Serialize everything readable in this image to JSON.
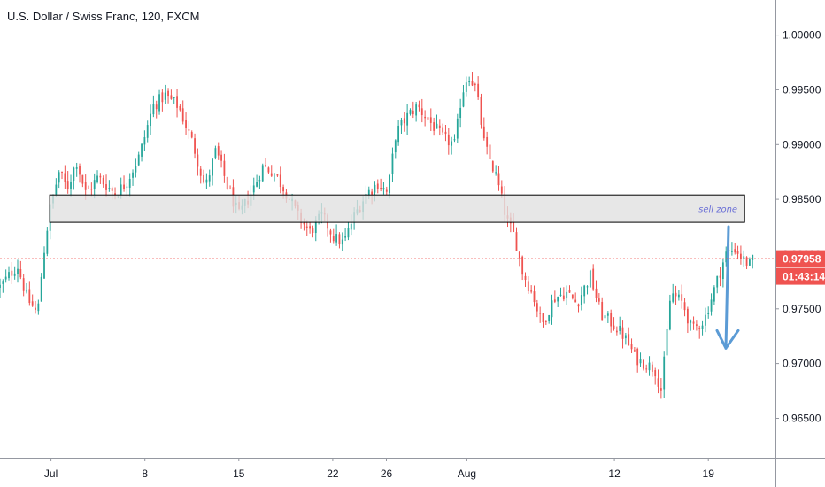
{
  "chart_data": {
    "type": "candlestick",
    "title": "U.S. Dollar / Swiss Franc, 120, FXCM",
    "y_ticks": [
      "1.00000",
      "0.99500",
      "0.99000",
      "0.98500",
      "0.98000",
      "0.97500",
      "0.97000",
      "0.96500"
    ],
    "y_tick_values": [
      1.0,
      0.995,
      0.99,
      0.985,
      0.98,
      0.975,
      0.97,
      0.965
    ],
    "ylim": [
      0.9614,
      1.0032
    ],
    "x_ticks": [
      "Jul",
      "8",
      "15",
      "22",
      "26",
      "Aug",
      "12",
      "19"
    ],
    "x_tick_days": [
      1,
      8,
      15,
      22,
      26,
      32,
      43,
      50
    ],
    "x_range_days": [
      -2.8,
      55
    ],
    "current_price": "0.97958",
    "current_price_value": 0.97958,
    "countdown": "01:43:14",
    "zone": {
      "label": "sell zone",
      "y_top": 0.9854,
      "y_bottom": 0.9829,
      "x_start_day": 0.9,
      "x_end_day": 52.7
    },
    "arrow": {
      "x_day": 51.5,
      "y_start": 0.9825,
      "y_end": 0.9714
    },
    "anchors": [
      [
        -2.8,
        0.977
      ],
      [
        -1.5,
        0.979
      ],
      [
        -0.8,
        0.976
      ],
      [
        0.0,
        0.9745
      ],
      [
        0.4,
        0.9795
      ],
      [
        0.9,
        0.984
      ],
      [
        1.6,
        0.9875
      ],
      [
        2.2,
        0.986
      ],
      [
        2.9,
        0.9885
      ],
      [
        3.6,
        0.9855
      ],
      [
        4.5,
        0.987
      ],
      [
        5.8,
        0.9855
      ],
      [
        6.6,
        0.9865
      ],
      [
        7.6,
        0.989
      ],
      [
        8.6,
        0.9935
      ],
      [
        9.5,
        0.9945
      ],
      [
        10.5,
        0.9935
      ],
      [
        11.6,
        0.99
      ],
      [
        12.5,
        0.986
      ],
      [
        13.3,
        0.9895
      ],
      [
        14.2,
        0.986
      ],
      [
        15.0,
        0.9835
      ],
      [
        15.9,
        0.9855
      ],
      [
        16.8,
        0.988
      ],
      [
        17.6,
        0.9875
      ],
      [
        18.6,
        0.9855
      ],
      [
        19.4,
        0.9835
      ],
      [
        20.3,
        0.982
      ],
      [
        21.2,
        0.9835
      ],
      [
        22.1,
        0.9815
      ],
      [
        22.8,
        0.981
      ],
      [
        23.6,
        0.9835
      ],
      [
        24.5,
        0.9855
      ],
      [
        25.4,
        0.9865
      ],
      [
        26.1,
        0.9855
      ],
      [
        26.7,
        0.991
      ],
      [
        27.5,
        0.9925
      ],
      [
        28.3,
        0.9935
      ],
      [
        29.3,
        0.992
      ],
      [
        30.3,
        0.9905
      ],
      [
        31.1,
        0.99
      ],
      [
        31.6,
        0.9945
      ],
      [
        32.1,
        0.9965
      ],
      [
        32.7,
        0.995
      ],
      [
        33.3,
        0.99
      ],
      [
        34.2,
        0.987
      ],
      [
        35.0,
        0.983
      ],
      [
        35.6,
        0.9815
      ],
      [
        36.1,
        0.9785
      ],
      [
        37.0,
        0.976
      ],
      [
        37.6,
        0.9735
      ],
      [
        38.5,
        0.976
      ],
      [
        39.4,
        0.9765
      ],
      [
        40.2,
        0.9755
      ],
      [
        41.2,
        0.978
      ],
      [
        42.0,
        0.9745
      ],
      [
        43.0,
        0.9735
      ],
      [
        43.7,
        0.9725
      ],
      [
        44.6,
        0.9705
      ],
      [
        45.3,
        0.97
      ],
      [
        46.0,
        0.9695
      ],
      [
        46.5,
        0.9675
      ],
      [
        47.2,
        0.9765
      ],
      [
        48.1,
        0.9755
      ],
      [
        48.8,
        0.973
      ],
      [
        49.7,
        0.974
      ],
      [
        50.5,
        0.977
      ],
      [
        51.3,
        0.98
      ],
      [
        52.0,
        0.9805
      ],
      [
        52.6,
        0.9795
      ],
      [
        53.1,
        0.979
      ],
      [
        53.4,
        0.9796
      ]
    ],
    "colors": {
      "up": "#26a69a",
      "down": "#ef5350",
      "price_line": "#ef5350",
      "zone_fill": "#e0e0e0",
      "zone_border": "#000000",
      "arrow": "#5b9bd5",
      "text": "#131722",
      "axis_line": "#9598a1",
      "zone_text": "#6a6fd6"
    }
  }
}
